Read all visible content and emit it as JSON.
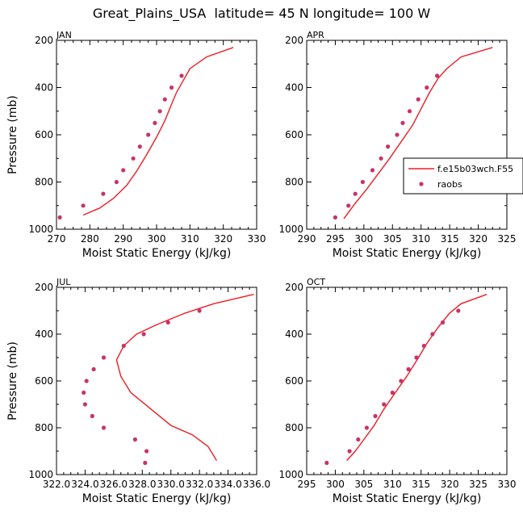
{
  "figure_title": "Great_Plains_USA  latitude= 45 N longitude= 100 W",
  "colors": {
    "model": "#ee1c24",
    "obs": "#c8336a",
    "axis": "#000000"
  },
  "legend": {
    "placement": "right of APR panel",
    "entries": [
      {
        "label": "f.e15b03wch.F55",
        "style": "line",
        "color": "#ee1c24"
      },
      {
        "label": "raobs",
        "style": "dot",
        "color": "#c8336a"
      }
    ]
  },
  "chart_data": [
    {
      "type": "line",
      "panel_label": "JAN",
      "xlabel": "Moist Static Energy (kJ/kg)",
      "ylabel": "Pressure (mb)",
      "xlim": [
        270,
        330
      ],
      "xticks": [
        "270",
        "280",
        "290",
        "300",
        "310",
        "320",
        "330"
      ],
      "xtick_values": [
        270,
        280,
        290,
        300,
        310,
        320,
        330
      ],
      "ylim": [
        1000,
        200
      ],
      "yticks": [
        "200",
        "400",
        "600",
        "800",
        "1000"
      ],
      "ytick_values": [
        200,
        400,
        600,
        800,
        1000
      ],
      "series": [
        {
          "name": "f.e15b03wch.F55",
          "kind": "line",
          "points": [
            [
              278,
              940
            ],
            [
              283,
              910
            ],
            [
              287,
              870
            ],
            [
              291,
              815
            ],
            [
              294,
              755
            ],
            [
              297,
              685
            ],
            [
              300,
              610
            ],
            [
              302.5,
              540
            ],
            [
              304.5,
              470
            ],
            [
              306,
              420
            ],
            [
              308,
              370
            ],
            [
              310,
              320
            ],
            [
              315,
              270
            ],
            [
              323,
              230
            ]
          ]
        },
        {
          "name": "raobs",
          "kind": "scatter",
          "points": [
            [
              271,
              950
            ],
            [
              278,
              900
            ],
            [
              284,
              850
            ],
            [
              288,
              800
            ],
            [
              290,
              750
            ],
            [
              293,
              700
            ],
            [
              295,
              650
            ],
            [
              297.5,
              600
            ],
            [
              299.5,
              550
            ],
            [
              301,
              500
            ],
            [
              302.5,
              450
            ],
            [
              304.5,
              400
            ],
            [
              307.5,
              350
            ]
          ]
        }
      ]
    },
    {
      "type": "line",
      "panel_label": "APR",
      "xlabel": "Moist Static Energy (kJ/kg)",
      "ylabel": "",
      "xlim": [
        290,
        325
      ],
      "xticks": [
        "290",
        "295",
        "300",
        "305",
        "310",
        "315",
        "320",
        "325"
      ],
      "xtick_values": [
        290,
        295,
        300,
        305,
        310,
        315,
        320,
        325
      ],
      "ylim": [
        1000,
        200
      ],
      "yticks": [
        "200",
        "400",
        "600",
        "800",
        "1000"
      ],
      "ytick_values": [
        200,
        400,
        600,
        800,
        1000
      ],
      "series": [
        {
          "name": "f.e15b03wch.F55",
          "kind": "line",
          "points": [
            [
              296.5,
              955
            ],
            [
              298.5,
              890
            ],
            [
              300.5,
              830
            ],
            [
              302.5,
              765
            ],
            [
              304.5,
              700
            ],
            [
              306.5,
              630
            ],
            [
              308.5,
              560
            ],
            [
              310,
              490
            ],
            [
              311.5,
              420
            ],
            [
              313,
              360
            ],
            [
              314.5,
              320
            ],
            [
              317,
              270
            ],
            [
              322.5,
              230
            ]
          ]
        },
        {
          "name": "raobs",
          "kind": "scatter",
          "points": [
            [
              295,
              950
            ],
            [
              297.3,
              900
            ],
            [
              298.5,
              850
            ],
            [
              299.8,
              800
            ],
            [
              301.5,
              750
            ],
            [
              303,
              700
            ],
            [
              304.2,
              650
            ],
            [
              305.8,
              600
            ],
            [
              306.8,
              550
            ],
            [
              308,
              500
            ],
            [
              309.5,
              450
            ],
            [
              311,
              400
            ],
            [
              312.8,
              350
            ]
          ]
        }
      ]
    },
    {
      "type": "line",
      "panel_label": "JUL",
      "xlabel": "Moist Static Energy (kJ/kg)",
      "ylabel": "Pressure (mb)",
      "xlim": [
        322.0,
        336.0
      ],
      "xticks": [
        "322.0",
        "324.0",
        "326.0",
        "328.0",
        "330.0",
        "332.0",
        "334.0",
        "336.0"
      ],
      "xtick_values": [
        322.0,
        324.0,
        326.0,
        328.0,
        330.0,
        332.0,
        334.0,
        336.0
      ],
      "ylim": [
        1000,
        200
      ],
      "yticks": [
        "200",
        "400",
        "600",
        "800",
        "1000"
      ],
      "ytick_values": [
        200,
        400,
        600,
        800,
        1000
      ],
      "series": [
        {
          "name": "f.e15b03wch.F55",
          "kind": "line",
          "points": [
            [
              333.2,
              940
            ],
            [
              333,
              920
            ],
            [
              332.6,
              880
            ],
            [
              331.5,
              830
            ],
            [
              330,
              790
            ],
            [
              329,
              740
            ],
            [
              328,
              690
            ],
            [
              327.2,
              650
            ],
            [
              326.5,
              580
            ],
            [
              326.2,
              510
            ],
            [
              326.7,
              450
            ],
            [
              327.6,
              400
            ],
            [
              329,
              360
            ],
            [
              331,
              310
            ],
            [
              333,
              270
            ],
            [
              335.8,
              230
            ]
          ]
        },
        {
          "name": "raobs",
          "kind": "scatter",
          "points": [
            [
              328.2,
              950
            ],
            [
              328.3,
              900
            ],
            [
              327.5,
              850
            ],
            [
              325.3,
              800
            ],
            [
              324.5,
              750
            ],
            [
              324,
              700
            ],
            [
              323.9,
              650
            ],
            [
              324.1,
              600
            ],
            [
              324.6,
              550
            ],
            [
              325.3,
              500
            ],
            [
              326.7,
              450
            ],
            [
              328.1,
              400
            ],
            [
              329.8,
              350
            ],
            [
              332,
              300
            ]
          ]
        }
      ]
    },
    {
      "type": "line",
      "panel_label": "OCT",
      "xlabel": "Moist Static Energy (kJ/kg)",
      "ylabel": "",
      "xlim": [
        295,
        330
      ],
      "xticks": [
        "295",
        "300",
        "305",
        "310",
        "315",
        "320",
        "325",
        "330"
      ],
      "xtick_values": [
        295,
        300,
        305,
        310,
        315,
        320,
        325,
        330
      ],
      "ylim": [
        1000,
        200
      ],
      "yticks": [
        "200",
        "400",
        "600",
        "800",
        "1000"
      ],
      "ytick_values": [
        200,
        400,
        600,
        800,
        1000
      ],
      "series": [
        {
          "name": "f.e15b03wch.F55",
          "kind": "line",
          "points": [
            [
              302,
              940
            ],
            [
              303.5,
              900
            ],
            [
              305,
              850
            ],
            [
              306.8,
              790
            ],
            [
              308.5,
              720
            ],
            [
              310.5,
              650
            ],
            [
              312.5,
              580
            ],
            [
              314.3,
              510
            ],
            [
              316,
              440
            ],
            [
              318,
              370
            ],
            [
              320,
              310
            ],
            [
              322,
              270
            ],
            [
              326.5,
              230
            ]
          ]
        },
        {
          "name": "raobs",
          "kind": "scatter",
          "points": [
            [
              298.5,
              950
            ],
            [
              302.5,
              900
            ],
            [
              304,
              850
            ],
            [
              305.5,
              800
            ],
            [
              307,
              750
            ],
            [
              308.5,
              700
            ],
            [
              310,
              650
            ],
            [
              311.5,
              600
            ],
            [
              312.8,
              550
            ],
            [
              314.2,
              500
            ],
            [
              315.5,
              450
            ],
            [
              317,
              400
            ],
            [
              318.8,
              350
            ],
            [
              321.5,
              300
            ]
          ]
        }
      ]
    }
  ]
}
